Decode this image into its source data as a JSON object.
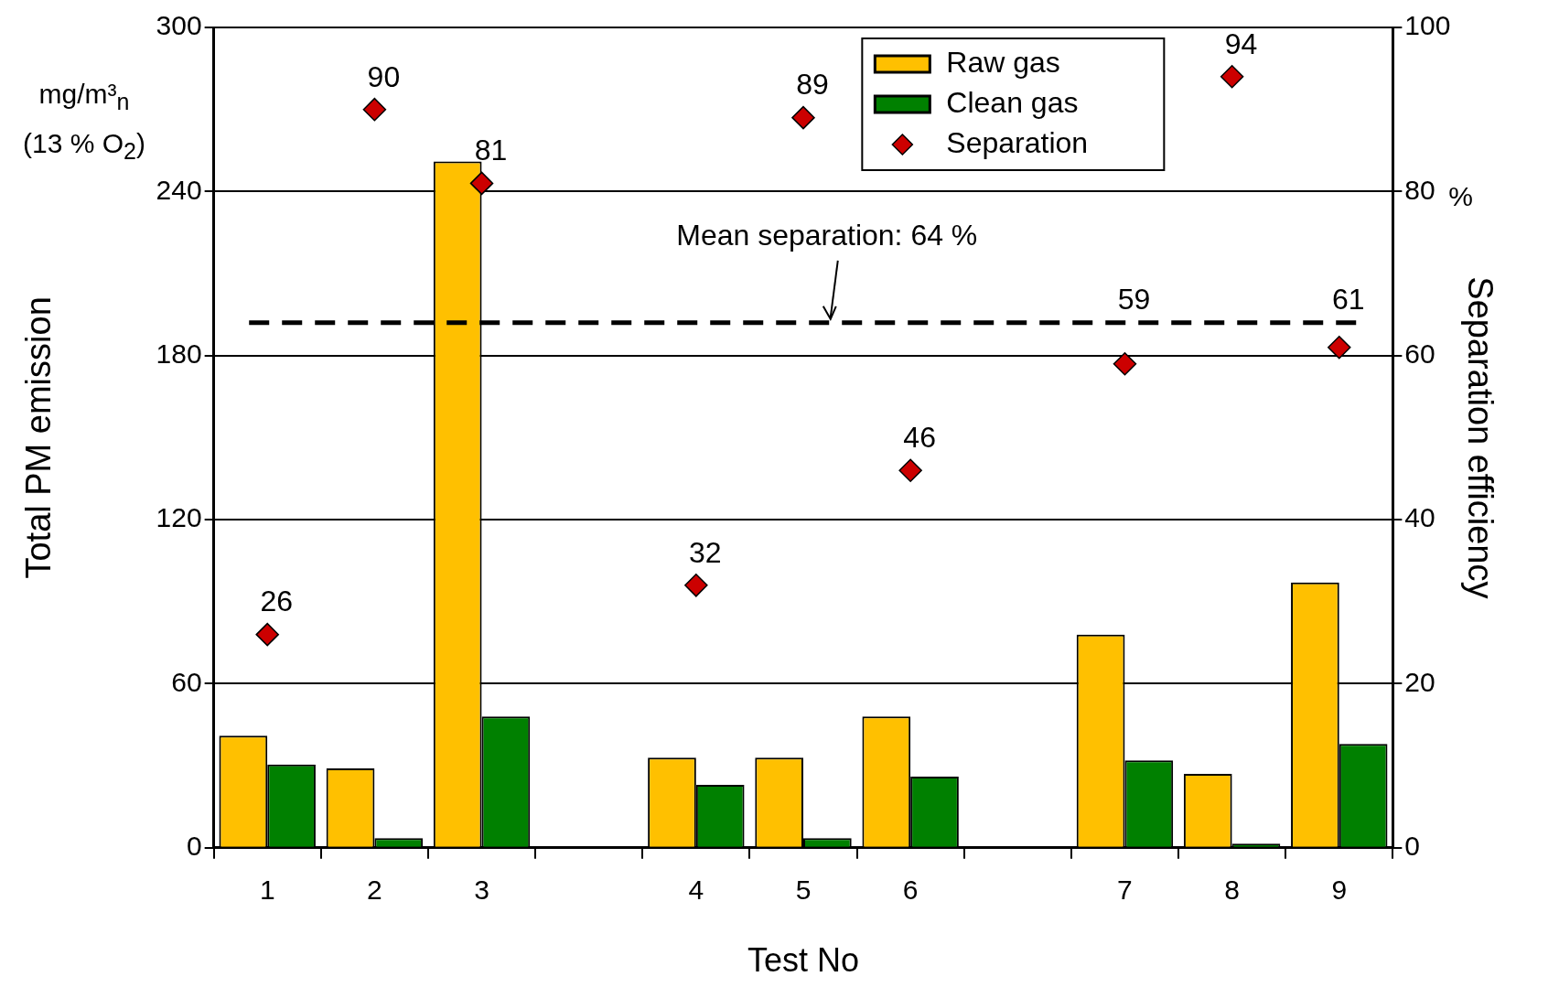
{
  "chart_data": {
    "type": "bar",
    "xlabel": "Test No",
    "ylabel": "Total PM emission",
    "y2label": "Separation efficiency",
    "annotations": [
      "mg/m³$_{n}$ (13 % O$_{2}$)",
      "%"
    ],
    "categories": [
      "1",
      "2",
      "3",
      null,
      "4",
      "5",
      "6",
      null,
      "7",
      "8",
      "9"
    ],
    "series": [
      {
        "name": "Raw gas",
        "color": "#ffc000",
        "values": [
          41,
          29,
          251,
          null,
          33,
          33,
          48,
          null,
          78,
          27,
          97
        ]
      },
      {
        "name": "Clean gas",
        "color": "#008000",
        "values": [
          30.5,
          3.5,
          48,
          null,
          23,
          3.5,
          26,
          null,
          32,
          1.5,
          38
        ]
      },
      {
        "name": "Separation",
        "type": "scatter",
        "axis": "y2",
        "color": "#cc0000",
        "marker": "diamond",
        "values": [
          26,
          90,
          81,
          null,
          32,
          89,
          46,
          null,
          59,
          94,
          61
        ],
        "value_labels": [
          "26",
          "90",
          "81",
          null,
          "32",
          "89",
          "46",
          null,
          "59",
          "94",
          "61"
        ]
      }
    ],
    "ylim": [
      0,
      300
    ],
    "yticks": [
      0,
      60,
      120,
      180,
      240,
      300
    ],
    "y2lim": [
      0,
      100
    ],
    "y2ticks": [
      0,
      20,
      40,
      60,
      80,
      100
    ],
    "ref_lines": [
      {
        "axis": "y2",
        "value": 64,
        "label": "Mean separation: 64 %",
        "color": "#000000",
        "line_style": "dashed"
      }
    ],
    "grid": "y",
    "legend": "top right"
  }
}
